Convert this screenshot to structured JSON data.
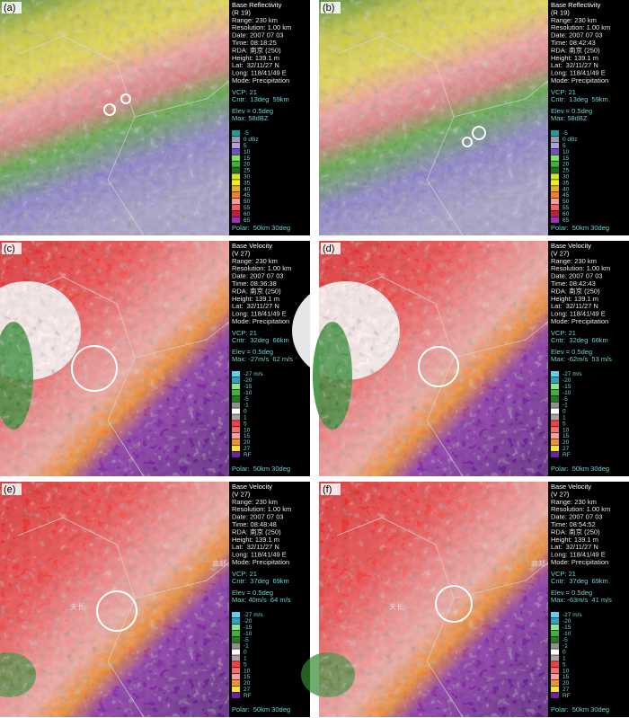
{
  "panels": [
    {
      "label": "(a)",
      "header": [
        "Base Reflectivity",
        "(R 19)",
        "Range: 230 km",
        "Resolution: 1.00 km",
        "Date: 2007 07 03",
        "Time: 08:18:25",
        "RDA: 南京 (250)",
        "Height: 139.1 m",
        "Lat:  32/11/27 N",
        "Long: 118/41/49 E",
        "Mode: Precipitation"
      ],
      "vcp": "VCP: 21",
      "cntr": "Cntr:  13deg  59km",
      "elev": "Elev = 0.5deg",
      "max": "Max: 58dBZ",
      "legend": [
        "-5",
        "0 dBz",
        "5",
        "10",
        "15",
        "20",
        "25",
        "30",
        "35",
        "40",
        "45",
        "50",
        "55",
        "60",
        "65"
      ],
      "legend_colors": [
        "#18a0a0",
        "#9a9ab0",
        "#b0a0e0",
        "#7050c0",
        "#80e060",
        "#40b040",
        "#207020",
        "#d8e030",
        "#f0f020",
        "#e0b030",
        "#f08030",
        "#f0a0a0",
        "#f06060",
        "#c02040",
        "#a030c0"
      ],
      "polar": "Polar:  50km 30deg",
      "places": []
    },
    {
      "label": "(b)",
      "header": [
        "Base Reflectivity",
        "(R 19)",
        "Range: 230 km",
        "Resolution: 1.00 km",
        "Date: 2007 07 03",
        "Time: 08:42:43",
        "RDA: 南京 (250)",
        "Height: 139.1 m",
        "Lat:  32/11/27 N",
        "Long: 118/41/49 E",
        "Mode: Precipitation"
      ],
      "vcp": "VCP: 21",
      "cntr": "Cntr:  13deg  59km",
      "elev": "Elev = 0.5deg",
      "max": "Max: 58dBZ",
      "legend": [
        "-5",
        "0 dBz",
        "5",
        "10",
        "15",
        "20",
        "25",
        "30",
        "35",
        "40",
        "45",
        "50",
        "55",
        "60",
        "65"
      ],
      "legend_colors": [
        "#18a0a0",
        "#9a9ab0",
        "#b0a0e0",
        "#7050c0",
        "#80e060",
        "#40b040",
        "#207020",
        "#d8e030",
        "#f0f020",
        "#e0b030",
        "#f08030",
        "#f0a0a0",
        "#f06060",
        "#c02040",
        "#a030c0"
      ],
      "polar": "Polar:  50km 30deg",
      "places": []
    },
    {
      "label": "(c)",
      "header": [
        "Base Velocity",
        "(V 27)",
        "Range: 230 km",
        "Resolution: 1.00 km",
        "Date: 2007 07 03",
        "Time: 08:36:38",
        "RDA: 南京 (250)",
        "Height: 139.1 m",
        "Lat:  32/11/27 N",
        "Long: 118/41/49 E",
        "Mode: Precipitation"
      ],
      "vcp": "VCP: 21",
      "cntr": "Cntr:  32deg  66km",
      "elev": "Elev = 0.5deg",
      "max": "Max: -27m/s  62 m/s",
      "legend": [
        "-27 m/s",
        "-20",
        "-15",
        "-10",
        "-5",
        "-1",
        "0",
        "1",
        "5",
        "10",
        "15",
        "20",
        "27",
        "RF"
      ],
      "legend_colors": [
        "#60d0f0",
        "#30a0c0",
        "#90e090",
        "#40b040",
        "#208020",
        "#909090",
        "#ffffff",
        "#b0a0a0",
        "#f04040",
        "#f07070",
        "#f0a0a0",
        "#f09030",
        "#f0e040",
        "#7020a0"
      ],
      "polar": "Polar:  50km 30deg",
      "places": []
    },
    {
      "label": "(d)",
      "header": [
        "Base Velocity",
        "(V 27)",
        "Range: 230 km",
        "Resolution: 1.00 km",
        "Date: 2007 07 03",
        "Time: 08:42:43",
        "RDA: 南京 (250)",
        "Height: 139.1 m",
        "Lat:  32/11/27 N",
        "Long: 118/41/49 E",
        "Mode: Precipitation"
      ],
      "vcp": "VCP: 21",
      "cntr": "Cntr:  32deg  66km",
      "elev": "Elev = 0.5deg",
      "max": "Max: -62m/s  53 m/s",
      "legend": [
        "-27 m/s",
        "-20",
        "-15",
        "-10",
        "-5",
        "-1",
        "0",
        "1",
        "5",
        "10",
        "15",
        "20",
        "27",
        "RF"
      ],
      "legend_colors": [
        "#60d0f0",
        "#30a0c0",
        "#90e090",
        "#40b040",
        "#208020",
        "#909090",
        "#ffffff",
        "#b0a0a0",
        "#f04040",
        "#f07070",
        "#f0a0a0",
        "#f09030",
        "#f0e040",
        "#7020a0"
      ],
      "polar": "Polar:  50km 30deg",
      "places": []
    },
    {
      "label": "(e)",
      "header": [
        "Base Velocity",
        "(V 27)",
        "Range: 230 km",
        "Resolution: 1.00 km",
        "Date: 2007 07 03",
        "Time: 08:48:48",
        "RDA: 南京 (250)",
        "Height: 139.1 m",
        "Lat:  32/11/27 N",
        "Long: 118/41/49 E",
        "Mode: Precipitation"
      ],
      "vcp": "VCP: 21",
      "cntr": "Cntr:  37deg  69km",
      "elev": "Elev = 0.5deg",
      "max": "Max: 40m/s  64 m/s",
      "legend": [
        "-27 m/s",
        "-20",
        "-15",
        "-10",
        "-5",
        "-1",
        "0",
        "1",
        "5",
        "10",
        "15",
        "20",
        "27",
        "RF"
      ],
      "legend_colors": [
        "#60d0f0",
        "#30a0c0",
        "#90e090",
        "#40b040",
        "#208020",
        "#909090",
        "#ffffff",
        "#b0a0a0",
        "#f04040",
        "#f07070",
        "#f0a0a0",
        "#f09030",
        "#f0e040",
        "#7020a0"
      ],
      "polar": "Polar:  50km 30deg",
      "places": [
        "天长",
        "高邮"
      ]
    },
    {
      "label": "(f)",
      "header": [
        "Base Velocity",
        "(V 27)",
        "Range: 230 km",
        "Resolution: 1.00 km",
        "Date: 2007 07 03",
        "Time: 08:54:52",
        "RDA: 南京 (250)",
        "Height: 139.1 m",
        "Lat:  32/11/27 N",
        "Long: 118/41/49 E",
        "Mode: Precipitation"
      ],
      "vcp": "VCP: 21",
      "cntr": "Cntr:  37deg  69km",
      "elev": "Elev = 0.5deg",
      "max": "Max: -63m/s  41 m/s",
      "legend": [
        "-27 m/s",
        "-20",
        "-15",
        "-10",
        "-5",
        "-1",
        "0",
        "1",
        "5",
        "10",
        "15",
        "20",
        "27",
        "RF"
      ],
      "legend_colors": [
        "#60d0f0",
        "#30a0c0",
        "#90e090",
        "#40b040",
        "#208020",
        "#909090",
        "#ffffff",
        "#b0a0a0",
        "#f04040",
        "#f07070",
        "#f0a0a0",
        "#f09030",
        "#f0e040",
        "#7020a0"
      ],
      "polar": "Polar:  50km 30deg",
      "places": [
        "天长",
        "高邮"
      ]
    }
  ]
}
